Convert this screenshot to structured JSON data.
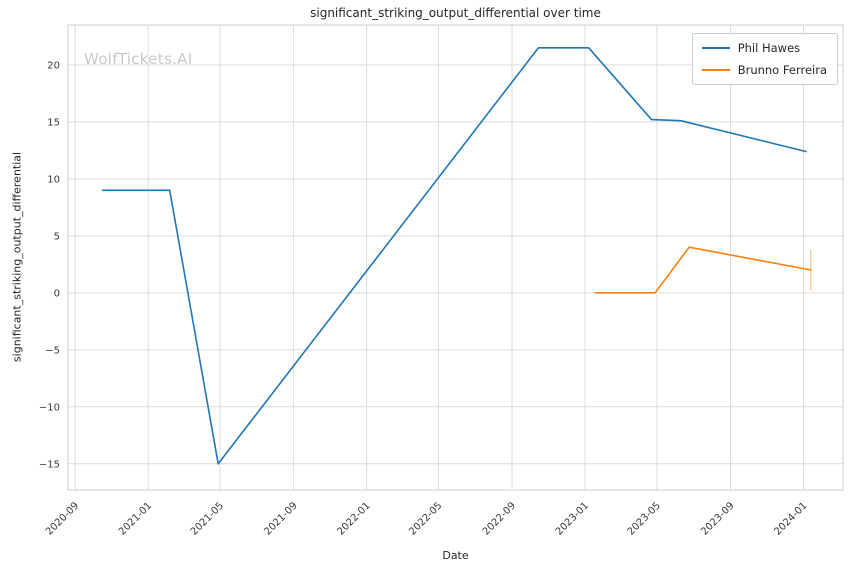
{
  "watermark": {
    "text": "WolfTickets.AI",
    "color": "#c9c9c9"
  },
  "chart_data": {
    "type": "line",
    "title": "significant_striking_output_differential over time",
    "xlabel": "Date",
    "ylabel": "significant_striking_output_differential",
    "x_domain": [
      "2020-08-20",
      "2024-03-07"
    ],
    "y_domain": [
      -17.3,
      23.5
    ],
    "x_ticks": [
      "2020-09",
      "2021-01",
      "2021-05",
      "2021-09",
      "2022-01",
      "2022-05",
      "2022-09",
      "2023-01",
      "2023-05",
      "2023-09",
      "2024-01"
    ],
    "y_ticks": [
      {
        "value": -15,
        "label": "−15"
      },
      {
        "value": -10,
        "label": "−10"
      },
      {
        "value": -5,
        "label": "−5"
      },
      {
        "value": 0,
        "label": "0"
      },
      {
        "value": 5,
        "label": "5"
      },
      {
        "value": 10,
        "label": "10"
      },
      {
        "value": 15,
        "label": "15"
      },
      {
        "value": 20,
        "label": "20"
      }
    ],
    "grid": true,
    "grid_color": "#dcdcdc",
    "spine_color": "#cccccc",
    "tick_color": "#3a3a3a",
    "legend_position": "upper right",
    "series": [
      {
        "name": "Phil Hawes",
        "color": "#1f77b4",
        "points": [
          [
            "2020-10-17",
            9.0
          ],
          [
            "2021-02-06",
            9.0
          ],
          [
            "2021-04-28",
            -15.0
          ],
          [
            "2022-10-15",
            21.5
          ],
          [
            "2023-01-07",
            21.5
          ],
          [
            "2023-04-22",
            15.2
          ],
          [
            "2023-06-10",
            15.1
          ],
          [
            "2024-01-05",
            12.4
          ]
        ]
      },
      {
        "name": "Brunno Ferreira",
        "color": "#ff7f0e",
        "points": [
          [
            "2023-01-18",
            0.0
          ],
          [
            "2023-04-28",
            0.0
          ],
          [
            "2023-06-24",
            4.0
          ],
          [
            "2024-01-13",
            2.0
          ]
        ]
      }
    ],
    "error_bars": [
      {
        "series": "Brunno Ferreira",
        "x": "2024-01-13",
        "y_low": 0.2,
        "y_high": 3.8,
        "color": "#ffbb78"
      }
    ]
  }
}
